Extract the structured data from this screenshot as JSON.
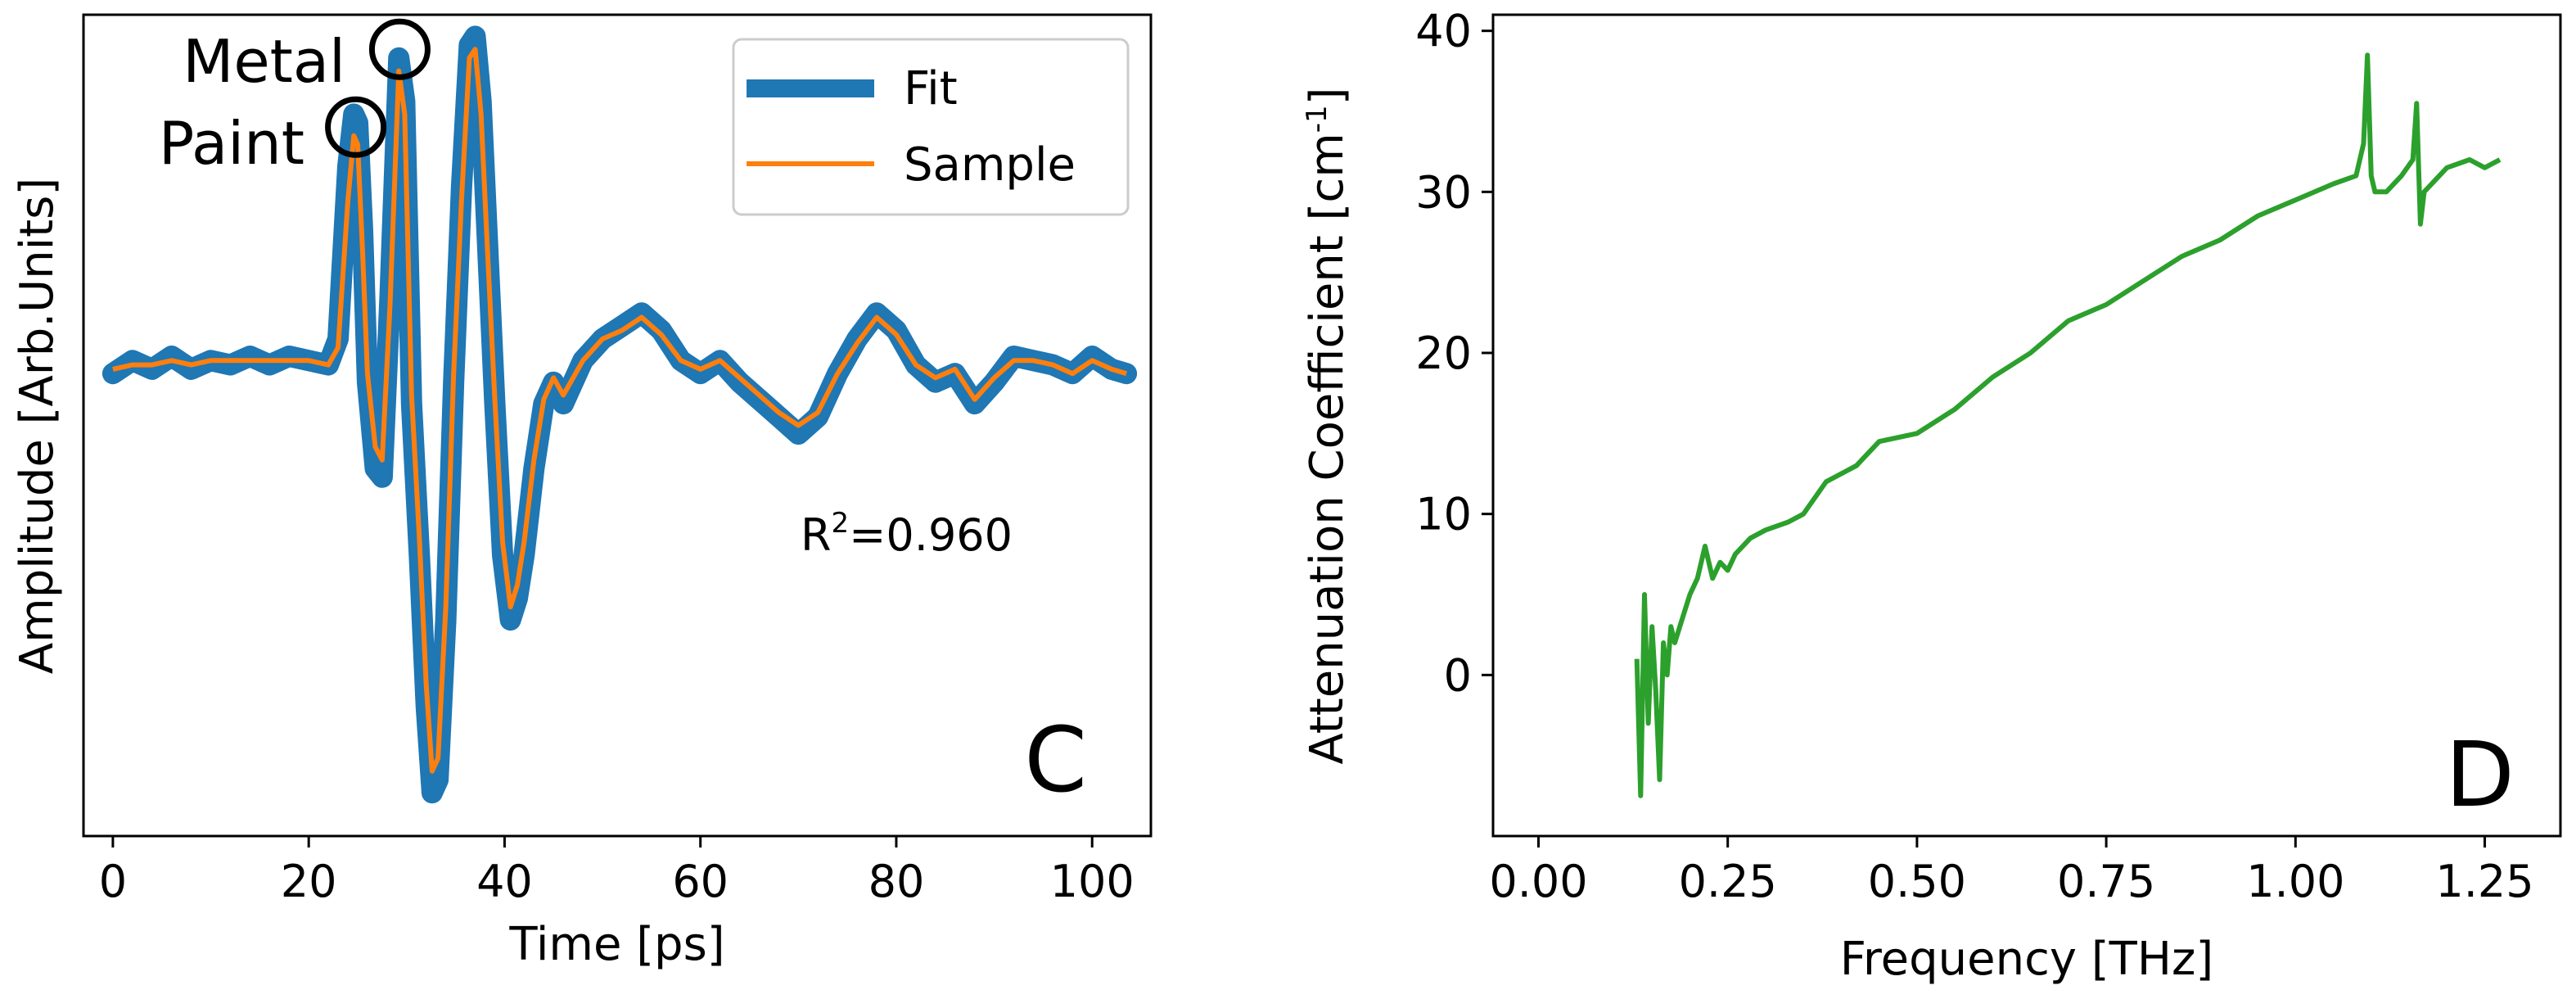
{
  "chart_data": [
    {
      "type": "line",
      "panel": "C",
      "xlabel": "Time [ps]",
      "ylabel": "Amplitude [Arb.Units]",
      "xlim": [
        -3,
        106
      ],
      "ylim": [
        -1.05,
        0.85
      ],
      "xticks": [
        0,
        20,
        40,
        60,
        80,
        100
      ],
      "yticks_shown": false,
      "legend": {
        "placement": "top-right",
        "entries": [
          "Fit",
          "Sample"
        ]
      },
      "colors": {
        "Fit": "#1f77b4",
        "Sample": "#ff7f0e"
      },
      "annotations": {
        "metal": "Metal",
        "paint": "Paint",
        "r2_prefix": "R",
        "r2_sup": "2",
        "r2_value": "=0.960"
      },
      "markers": [
        {
          "name": "Metal",
          "x": 29.3,
          "y": 0.77
        },
        {
          "name": "Paint",
          "x": 24.8,
          "y": 0.59
        }
      ],
      "series": [
        {
          "name": "Fit",
          "x": [
            0,
            2,
            4,
            6,
            8,
            10,
            12,
            14,
            16,
            18,
            20,
            22,
            23,
            24,
            24.6,
            25,
            25.5,
            26,
            26.8,
            27.5,
            28.3,
            29.2,
            29.8,
            30.5,
            31.3,
            32,
            32.6,
            33.2,
            34,
            34.8,
            35.6,
            36.4,
            37,
            37.6,
            38.2,
            39,
            39.8,
            40.6,
            41.3,
            42,
            43,
            44,
            45,
            46,
            48,
            50,
            52,
            54,
            56,
            58,
            60,
            62,
            64,
            66,
            68,
            70,
            72,
            74,
            76,
            78,
            80,
            82,
            84,
            86,
            88,
            90,
            92,
            94,
            96,
            98,
            100,
            102,
            103.5
          ],
          "values": [
            0.02,
            0.05,
            0.03,
            0.06,
            0.03,
            0.05,
            0.04,
            0.06,
            0.04,
            0.06,
            0.05,
            0.04,
            0.1,
            0.5,
            0.62,
            0.6,
            0.35,
            0.0,
            -0.2,
            -0.22,
            0.2,
            0.75,
            0.65,
            -0.05,
            -0.4,
            -0.75,
            -0.95,
            -0.92,
            -0.55,
            0.0,
            0.45,
            0.78,
            0.8,
            0.65,
            0.35,
            -0.05,
            -0.4,
            -0.55,
            -0.5,
            -0.4,
            -0.2,
            -0.05,
            0.0,
            -0.05,
            0.05,
            0.1,
            0.13,
            0.16,
            0.12,
            0.05,
            0.02,
            0.05,
            0.0,
            -0.04,
            -0.08,
            -0.12,
            -0.08,
            0.02,
            0.1,
            0.16,
            0.12,
            0.04,
            0.0,
            0.02,
            -0.05,
            0.0,
            0.06,
            0.05,
            0.04,
            0.02,
            0.06,
            0.03,
            0.02
          ]
        },
        {
          "name": "Sample",
          "x": [
            0,
            2,
            4,
            6,
            8,
            10,
            12,
            14,
            16,
            18,
            20,
            22,
            23,
            24,
            24.6,
            25,
            25.5,
            26,
            26.8,
            27.5,
            28.3,
            29.2,
            29.8,
            30.5,
            31.3,
            32,
            32.6,
            33.2,
            34,
            34.8,
            35.6,
            36.4,
            37,
            37.6,
            38.2,
            39,
            39.8,
            40.6,
            41.3,
            42,
            43,
            44,
            45,
            46,
            48,
            50,
            52,
            54,
            56,
            58,
            60,
            62,
            64,
            66,
            68,
            70,
            72,
            74,
            76,
            78,
            80,
            82,
            84,
            86,
            88,
            90,
            92,
            94,
            96,
            98,
            100,
            102,
            103.5
          ],
          "values": [
            0.03,
            0.04,
            0.04,
            0.05,
            0.04,
            0.05,
            0.05,
            0.05,
            0.05,
            0.05,
            0.05,
            0.04,
            0.08,
            0.42,
            0.57,
            0.55,
            0.3,
            0.02,
            -0.15,
            -0.18,
            0.18,
            0.72,
            0.62,
            -0.03,
            -0.36,
            -0.7,
            -0.9,
            -0.87,
            -0.52,
            0.02,
            0.42,
            0.75,
            0.77,
            0.62,
            0.33,
            -0.04,
            -0.37,
            -0.52,
            -0.47,
            -0.37,
            -0.18,
            -0.04,
            0.01,
            -0.03,
            0.05,
            0.1,
            0.12,
            0.15,
            0.11,
            0.05,
            0.03,
            0.05,
            0.01,
            -0.03,
            -0.07,
            -0.1,
            -0.07,
            0.02,
            0.09,
            0.15,
            0.11,
            0.04,
            0.01,
            0.03,
            -0.04,
            0.01,
            0.05,
            0.05,
            0.04,
            0.02,
            0.05,
            0.03,
            0.02
          ]
        }
      ],
      "panel_label": "C"
    },
    {
      "type": "line",
      "panel": "D",
      "xlabel": "Frequency [THz]",
      "ylabel_prefix": "Attenuation Coefficient [cm",
      "ylabel_sup": "-1",
      "ylabel_suffix": "]",
      "xlim": [
        -0.06,
        1.35
      ],
      "ylim": [
        -10,
        41
      ],
      "xticks": [
        0.0,
        0.25,
        0.5,
        0.75,
        1.0,
        1.25
      ],
      "xticklabels": [
        "0.00",
        "0.25",
        "0.50",
        "0.75",
        "1.00",
        "1.25"
      ],
      "yticks": [
        0,
        10,
        20,
        30,
        40
      ],
      "colors": {
        "line": "#2ca02c"
      },
      "series": [
        {
          "name": "",
          "x": [
            0.13,
            0.135,
            0.14,
            0.145,
            0.15,
            0.155,
            0.16,
            0.165,
            0.17,
            0.175,
            0.18,
            0.19,
            0.2,
            0.21,
            0.22,
            0.23,
            0.24,
            0.25,
            0.26,
            0.28,
            0.3,
            0.33,
            0.35,
            0.38,
            0.4,
            0.42,
            0.45,
            0.5,
            0.55,
            0.6,
            0.65,
            0.7,
            0.75,
            0.8,
            0.85,
            0.9,
            0.95,
            1.0,
            1.05,
            1.08,
            1.09,
            1.095,
            1.1,
            1.105,
            1.12,
            1.14,
            1.155,
            1.16,
            1.165,
            1.17,
            1.2,
            1.23,
            1.25,
            1.27
          ],
          "values": [
            1,
            -7.5,
            5,
            -3,
            3,
            -1,
            -6.5,
            2,
            0,
            3,
            2,
            3.5,
            5,
            6,
            8,
            6,
            7,
            6.5,
            7.5,
            8.5,
            9,
            9.5,
            10,
            12,
            12.5,
            13,
            14.5,
            15,
            16.5,
            18.5,
            20,
            22,
            23,
            24.5,
            26,
            27,
            28.5,
            29.5,
            30.5,
            31,
            33,
            38.5,
            31,
            30,
            30,
            31,
            32,
            35.5,
            28,
            30,
            31.5,
            32,
            31.5,
            32
          ]
        }
      ],
      "panel_label": "D"
    }
  ]
}
